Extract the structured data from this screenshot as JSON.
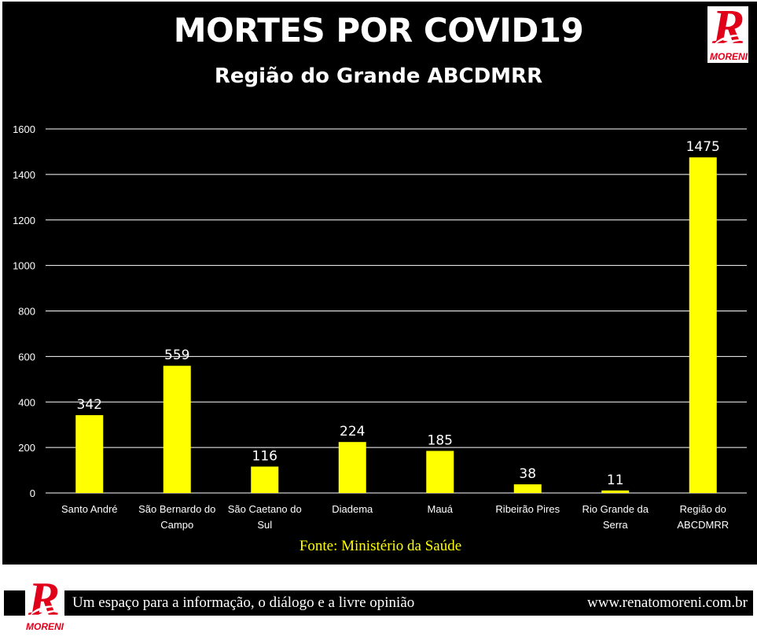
{
  "title": "MORTES POR COVID19",
  "subtitle": "Região do Grande ABCDMRR",
  "source_note": "Fonte: Ministério  da Saúde",
  "brand": "MORENI",
  "footer": {
    "slogan": "Um espaço para a informação,  o diálogo e a livre opinião",
    "url": "www.renatomoreni.com.br"
  },
  "colors": {
    "bar": "#ffff00",
    "background": "#000000",
    "text": "#ffffff",
    "brand_red": "#e1001a"
  },
  "chart_data": {
    "type": "bar",
    "title": "MORTES POR COVID19",
    "subtitle": "Região do Grande ABCDMRR",
    "categories": [
      "Santo André",
      "São Bernardo do Campo",
      "São Caetano do Sul",
      "Diadema",
      "Mauá",
      "Ribeirão Pires",
      "Rio Grande da Serra",
      "Região do ABCDMRR"
    ],
    "category_lines": [
      [
        "Santo André"
      ],
      [
        "São Bernardo do",
        "Campo"
      ],
      [
        "São Caetano do",
        "Sul"
      ],
      [
        "Diadema"
      ],
      [
        "Mauá"
      ],
      [
        "Ribeirão Pires"
      ],
      [
        "Rio Grande da",
        "Serra"
      ],
      [
        "Região do",
        "ABCDMRR"
      ]
    ],
    "values": [
      342,
      559,
      116,
      224,
      185,
      38,
      11,
      1475
    ],
    "data_labels": [
      "342",
      "559",
      "116",
      "224",
      "185",
      "38",
      "11",
      "1475"
    ],
    "ylim": [
      0,
      1600
    ],
    "yticks": [
      0,
      200,
      400,
      600,
      800,
      1000,
      1200,
      1400,
      1600
    ],
    "grid": true,
    "legend": "none",
    "xlabel": "",
    "ylabel": ""
  }
}
